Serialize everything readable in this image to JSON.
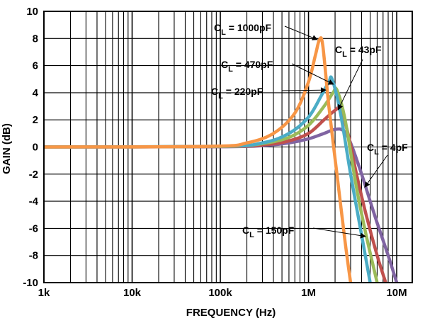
{
  "chart_data": {
    "type": "line",
    "xlabel": "FREQUENCY (Hz)",
    "ylabel": "GAIN (dB)",
    "x_scale": "log",
    "x_range_hz": [
      1000,
      15000000
    ],
    "ylim": [
      -10,
      10
    ],
    "grid": true,
    "x_ticks": [
      {
        "value": 1000,
        "label": "1k"
      },
      {
        "value": 10000,
        "label": "10k"
      },
      {
        "value": 100000,
        "label": "100k"
      },
      {
        "value": 1000000,
        "label": "1M"
      },
      {
        "value": 10000000,
        "label": "10M"
      }
    ],
    "y_ticks": [
      {
        "value": 10,
        "label": "10"
      },
      {
        "value": 8,
        "label": "8"
      },
      {
        "value": 6,
        "label": "6"
      },
      {
        "value": 4,
        "label": "4"
      },
      {
        "value": 2,
        "label": "2"
      },
      {
        "value": 0,
        "label": "0"
      },
      {
        "value": -2,
        "label": "-2"
      },
      {
        "value": -4,
        "label": "-4"
      },
      {
        "value": -6,
        "label": "-6"
      },
      {
        "value": -8,
        "label": "-8"
      },
      {
        "value": -10,
        "label": "-10"
      }
    ],
    "series": [
      {
        "color": "#8064a2",
        "label_prefix": "C",
        "label_sub": "L",
        "label_suffix": " = 4pF",
        "points": [
          [
            1000,
            0
          ],
          [
            100000,
            0.02
          ],
          [
            300000,
            0.1
          ],
          [
            600000,
            0.3
          ],
          [
            1000000,
            0.6
          ],
          [
            1500000,
            1.0
          ],
          [
            2000000,
            1.3
          ],
          [
            2500000,
            1.2
          ],
          [
            3000000,
            0.3
          ],
          [
            4000000,
            -2
          ],
          [
            5000000,
            -4
          ],
          [
            6000000,
            -5.6
          ],
          [
            8000000,
            -8
          ],
          [
            10000000,
            -10
          ]
        ]
      },
      {
        "color": "#c0504d",
        "label_prefix": "C",
        "label_sub": "L",
        "label_suffix": " = 43pF",
        "points": [
          [
            1000,
            0
          ],
          [
            100000,
            0.03
          ],
          [
            300000,
            0.15
          ],
          [
            600000,
            0.45
          ],
          [
            1000000,
            1.0
          ],
          [
            1500000,
            2.0
          ],
          [
            2000000,
            2.7
          ],
          [
            2300000,
            2.8
          ],
          [
            2800000,
            1.0
          ],
          [
            3500000,
            -2
          ],
          [
            4500000,
            -5
          ],
          [
            6000000,
            -8
          ],
          [
            7500000,
            -10
          ]
        ]
      },
      {
        "color": "#9bbb59",
        "label_prefix": "C",
        "label_sub": "L",
        "label_suffix": " = 150pF",
        "points": [
          [
            1000,
            0
          ],
          [
            100000,
            0.04
          ],
          [
            300000,
            0.25
          ],
          [
            600000,
            0.7
          ],
          [
            1000000,
            1.6
          ],
          [
            1500000,
            3.0
          ],
          [
            1900000,
            4.0
          ],
          [
            2100000,
            4.2
          ],
          [
            2600000,
            2.0
          ],
          [
            3500000,
            -3
          ],
          [
            4500000,
            -6.5
          ],
          [
            6000000,
            -10
          ]
        ]
      },
      {
        "color": "#4bacc6",
        "label_prefix": "C",
        "label_sub": "L",
        "label_suffix": " = 220pF",
        "points": [
          [
            1000,
            0
          ],
          [
            100000,
            0.05
          ],
          [
            300000,
            0.3
          ],
          [
            600000,
            1.0
          ],
          [
            1000000,
            2.2
          ],
          [
            1400000,
            3.8
          ],
          [
            1700000,
            4.8
          ],
          [
            1850000,
            5.0
          ],
          [
            2300000,
            2.5
          ],
          [
            3000000,
            -2
          ],
          [
            4000000,
            -6.5
          ],
          [
            5000000,
            -10
          ]
        ]
      },
      {
        "color": "#f79646",
        "label_prefix": "C",
        "label_sub": "L",
        "label_suffix": " = 1000pF",
        "points": [
          [
            1000,
            0
          ],
          [
            80000,
            0.05
          ],
          [
            200000,
            0.3
          ],
          [
            400000,
            1.0
          ],
          [
            700000,
            2.5
          ],
          [
            1000000,
            4.8
          ],
          [
            1200000,
            6.8
          ],
          [
            1330000,
            7.9
          ],
          [
            1450000,
            7.5
          ],
          [
            1700000,
            3.0
          ],
          [
            2100000,
            -2
          ],
          [
            2600000,
            -7
          ],
          [
            3000000,
            -10
          ]
        ]
      }
    ],
    "annotations": [
      {
        "prefix": "C",
        "sub": "L",
        "suffix": " = 1000pF",
        "target": [
          1280000,
          7.9
        ]
      },
      {
        "prefix": "C",
        "sub": "L",
        "suffix": " = 470pF",
        "target": [
          1950000,
          4.6
        ]
      },
      {
        "prefix": "C",
        "sub": "L",
        "suffix": " = 220pF",
        "target": [
          1600000,
          4.2
        ]
      },
      {
        "prefix": "C",
        "sub": "L",
        "suffix": " = 43pF",
        "target": [
          2150000,
          2.7
        ]
      },
      {
        "prefix": "C",
        "sub": "L",
        "suffix": " = 4pF",
        "target": [
          4300000,
          -3.0
        ]
      },
      {
        "prefix": "C",
        "sub": "L",
        "suffix": " = 150pF",
        "target": [
          4500000,
          -6.6
        ]
      }
    ]
  }
}
